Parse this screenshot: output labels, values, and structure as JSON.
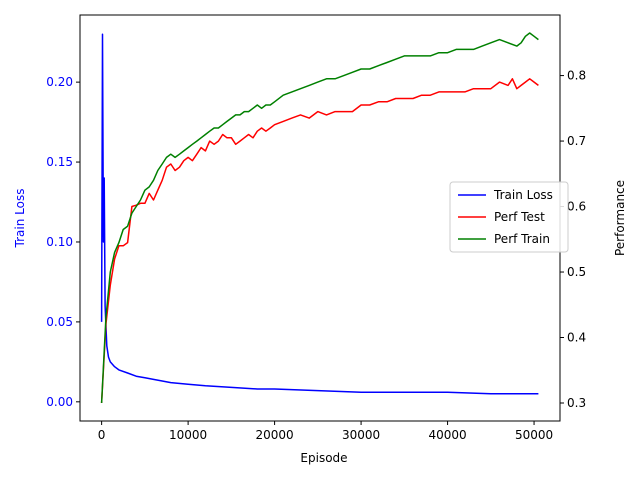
{
  "chart_data": {
    "type": "line",
    "title": "",
    "xlabel": "Episode",
    "ylabel_left": "Train Loss",
    "ylabel_right": "Performance",
    "xlim": [
      -2500,
      53000
    ],
    "ylim_left": [
      -0.012,
      0.242
    ],
    "ylim_right": [
      0.2725,
      0.8925
    ],
    "x_ticks": [
      0,
      10000,
      20000,
      30000,
      40000,
      50000
    ],
    "x_tick_labels": [
      "0",
      "10000",
      "20000",
      "30000",
      "40000",
      "50000"
    ],
    "y_left_ticks": [
      0.0,
      0.05,
      0.1,
      0.15,
      0.2
    ],
    "y_left_tick_labels": [
      "0.00",
      "0.05",
      "0.10",
      "0.15",
      "0.20"
    ],
    "y_right_ticks": [
      0.3,
      0.4,
      0.5,
      0.6,
      0.7,
      0.8
    ],
    "y_right_tick_labels": [
      "0.3",
      "0.4",
      "0.5",
      "0.6",
      "0.7",
      "0.8"
    ],
    "grid": false,
    "legend_position": "center-right",
    "colors": {
      "train_loss": "#0000ff",
      "perf_test": "#ff0000",
      "perf_train": "#008000",
      "left_axis_text": "#0000ff"
    },
    "series": [
      {
        "name": "Train Loss",
        "axis": "left",
        "x": [
          0,
          100,
          200,
          300,
          400,
          600,
          800,
          1000,
          1500,
          2000,
          3000,
          4000,
          5000,
          6000,
          7000,
          8000,
          10000,
          12000,
          15000,
          18000,
          20000,
          25000,
          30000,
          35000,
          40000,
          45000,
          50000,
          50500
        ],
        "y": [
          0.05,
          0.23,
          0.1,
          0.14,
          0.06,
          0.035,
          0.028,
          0.025,
          0.022,
          0.02,
          0.018,
          0.016,
          0.015,
          0.014,
          0.013,
          0.012,
          0.011,
          0.01,
          0.009,
          0.008,
          0.008,
          0.007,
          0.006,
          0.006,
          0.006,
          0.005,
          0.005,
          0.005
        ]
      },
      {
        "name": "Perf Test",
        "axis": "right",
        "x": [
          0,
          500,
          1000,
          1500,
          2000,
          2500,
          3000,
          3500,
          4000,
          4500,
          5000,
          5500,
          6000,
          6500,
          7000,
          7500,
          8000,
          8500,
          9000,
          9500,
          10000,
          10500,
          11000,
          11500,
          12000,
          12500,
          13000,
          13500,
          14000,
          14500,
          15000,
          15500,
          16000,
          16500,
          17000,
          17500,
          18000,
          18500,
          19000,
          19500,
          20000,
          21000,
          22000,
          23000,
          24000,
          25000,
          26000,
          27000,
          28000,
          29000,
          30000,
          31000,
          32000,
          33000,
          34000,
          35000,
          36000,
          37000,
          38000,
          39000,
          40000,
          41000,
          42000,
          43000,
          44000,
          45000,
          46000,
          47000,
          47500,
          48000,
          48500,
          49000,
          49500,
          50000,
          50500
        ],
        "y": [
          0.3,
          0.42,
          0.48,
          0.52,
          0.54,
          0.54,
          0.545,
          0.6,
          0.602,
          0.605,
          0.605,
          0.62,
          0.61,
          0.625,
          0.64,
          0.66,
          0.665,
          0.655,
          0.66,
          0.67,
          0.675,
          0.67,
          0.68,
          0.69,
          0.685,
          0.7,
          0.695,
          0.7,
          0.71,
          0.705,
          0.705,
          0.695,
          0.7,
          0.705,
          0.71,
          0.705,
          0.715,
          0.72,
          0.715,
          0.72,
          0.725,
          0.73,
          0.735,
          0.74,
          0.735,
          0.745,
          0.74,
          0.745,
          0.745,
          0.745,
          0.755,
          0.755,
          0.76,
          0.76,
          0.765,
          0.765,
          0.765,
          0.77,
          0.77,
          0.775,
          0.775,
          0.775,
          0.775,
          0.78,
          0.78,
          0.78,
          0.79,
          0.785,
          0.795,
          0.78,
          0.785,
          0.79,
          0.795,
          0.79,
          0.785
        ]
      },
      {
        "name": "Perf Train",
        "axis": "right",
        "x": [
          0,
          500,
          1000,
          1500,
          2000,
          2500,
          3000,
          3500,
          4000,
          4500,
          5000,
          5500,
          6000,
          6500,
          7000,
          7500,
          8000,
          8500,
          9000,
          9500,
          10000,
          10500,
          11000,
          11500,
          12000,
          12500,
          13000,
          13500,
          14000,
          14500,
          15000,
          15500,
          16000,
          16500,
          17000,
          17500,
          18000,
          18500,
          19000,
          19500,
          20000,
          21000,
          22000,
          23000,
          24000,
          25000,
          26000,
          27000,
          28000,
          29000,
          30000,
          31000,
          32000,
          33000,
          34000,
          35000,
          36000,
          37000,
          38000,
          39000,
          40000,
          41000,
          42000,
          43000,
          44000,
          45000,
          46000,
          47000,
          48000,
          48500,
          49000,
          49500,
          50000,
          50500
        ],
        "y": [
          0.3,
          0.43,
          0.5,
          0.53,
          0.545,
          0.565,
          0.57,
          0.59,
          0.6,
          0.61,
          0.625,
          0.63,
          0.64,
          0.655,
          0.665,
          0.675,
          0.68,
          0.675,
          0.68,
          0.685,
          0.69,
          0.695,
          0.7,
          0.705,
          0.71,
          0.715,
          0.72,
          0.72,
          0.725,
          0.73,
          0.735,
          0.74,
          0.74,
          0.745,
          0.745,
          0.75,
          0.755,
          0.75,
          0.755,
          0.755,
          0.76,
          0.77,
          0.775,
          0.78,
          0.785,
          0.79,
          0.795,
          0.795,
          0.8,
          0.805,
          0.81,
          0.81,
          0.815,
          0.82,
          0.825,
          0.83,
          0.83,
          0.83,
          0.83,
          0.835,
          0.835,
          0.84,
          0.84,
          0.84,
          0.845,
          0.85,
          0.855,
          0.85,
          0.845,
          0.85,
          0.86,
          0.865,
          0.86,
          0.855
        ]
      }
    ]
  }
}
